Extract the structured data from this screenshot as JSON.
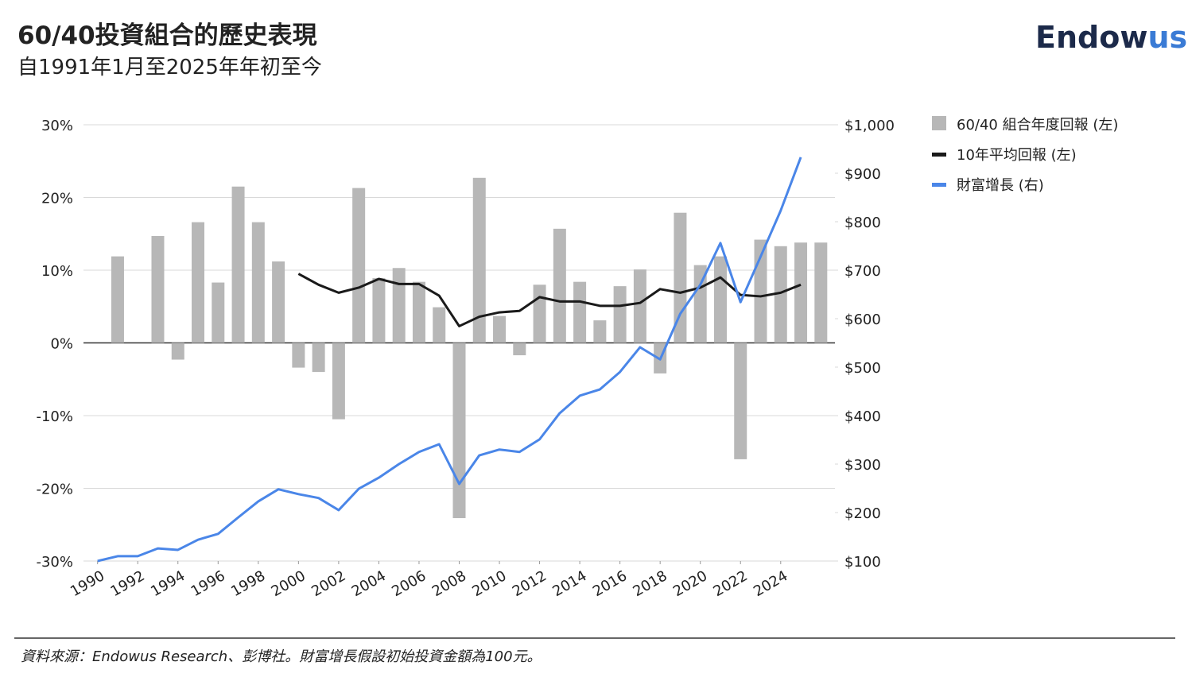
{
  "chart_data": {
    "type": "bar-line",
    "title": "60/40投資組合的歷史表現",
    "subtitle": "自1991年1月至2025年年初至今",
    "logo": [
      "Endow",
      "us"
    ],
    "source": "資料來源：Endowus Research、彭博社。財富增長假設初始投資金額為100元。",
    "xlim": [
      1989.3,
      2026.7
    ],
    "xticks": [
      1990,
      1992,
      1994,
      1996,
      1998,
      2000,
      2002,
      2004,
      2006,
      2008,
      2010,
      2012,
      2014,
      2016,
      2018,
      2020,
      2022,
      2024
    ],
    "ylim": [
      -30,
      30
    ],
    "yticks": [
      {
        "value": -30,
        "label": "-30%"
      },
      {
        "value": -20,
        "label": "-20%"
      },
      {
        "value": -10,
        "label": "-10%"
      },
      {
        "value": 0,
        "label": "0%"
      },
      {
        "value": 10,
        "label": "10%"
      },
      {
        "value": 20,
        "label": "20%"
      },
      {
        "value": 30,
        "label": "30%"
      }
    ],
    "y2lim": [
      100,
      1000
    ],
    "y2ticks": [
      {
        "value": 100,
        "label": "$100"
      },
      {
        "value": 200,
        "label": "$200"
      },
      {
        "value": 300,
        "label": "$300"
      },
      {
        "value": 400,
        "label": "$400"
      },
      {
        "value": 500,
        "label": "$500"
      },
      {
        "value": 600,
        "label": "$600"
      },
      {
        "value": 700,
        "label": "$700"
      },
      {
        "value": 800,
        "label": "$800"
      },
      {
        "value": 900,
        "label": "$900"
      },
      {
        "value": {
          "v": 1000
        },
        "label": "$1,000"
      }
    ],
    "grid": true,
    "series": [
      {
        "name": "60/40 組合年度回報 (左)",
        "type": "bar",
        "color": "#b7b7b7",
        "x": [
          1991,
          1992,
          1993,
          1994,
          1995,
          1996,
          1997,
          1998,
          1999,
          2000,
          2001,
          2002,
          2003,
          2004,
          2005,
          2006,
          2007,
          2008,
          2009,
          2010,
          2011,
          2012,
          2013,
          2014,
          2015,
          2016,
          2017,
          2018,
          2019,
          2020,
          2021,
          2022,
          2023,
          2024,
          2025,
          2026
        ],
        "values": [
          11.9,
          0,
          14.7,
          -2.3,
          16.6,
          8.3,
          21.5,
          16.6,
          11.2,
          -3.4,
          -4.0,
          -10.5,
          21.3,
          8.9,
          10.3,
          8.4,
          4.9,
          -24.1,
          22.7,
          3.7,
          -1.7,
          8.0,
          15.7,
          8.4,
          3.1,
          7.8,
          10.1,
          -4.2,
          17.9,
          10.7,
          11.9,
          -16.0,
          14.2,
          13.3,
          13.8,
          13.8
        ]
      },
      {
        "name": "10年平均回報 (左)",
        "type": "line",
        "color": "#1a1a1a",
        "x": [
          2000,
          2001,
          2002,
          2003,
          2004,
          2005,
          2006,
          2007,
          2008,
          2009,
          2010,
          2011,
          2012,
          2013,
          2014,
          2015,
          2016,
          2017,
          2018,
          2019,
          2020,
          2021,
          2022,
          2023,
          2024,
          2025
        ],
        "values": [
          9.5,
          8.0,
          6.9,
          7.6,
          8.8,
          8.1,
          8.1,
          6.5,
          2.3,
          3.6,
          4.2,
          4.4,
          6.3,
          5.7,
          5.7,
          5.1,
          5.1,
          5.5,
          7.4,
          6.9,
          7.6,
          9.0,
          6.6,
          6.4,
          6.9,
          8.0
        ]
      },
      {
        "name": "財富增長 (右)",
        "type": "line",
        "axis": "y2",
        "color": "#4a86e8",
        "x": [
          1990,
          1991,
          1992,
          1993,
          1994,
          1995,
          1996,
          1997,
          1998,
          1999,
          2000,
          2001,
          2002,
          2003,
          2004,
          2005,
          2006,
          2007,
          2008,
          2009,
          2010,
          2011,
          2012,
          2013,
          2014,
          2015,
          2016,
          2017,
          2018,
          2019,
          2020,
          2021,
          2022,
          2023,
          2024,
          2025
        ],
        "values": [
          100,
          110,
          110,
          126,
          123,
          144,
          156,
          190,
          223,
          248,
          238,
          230,
          205,
          249,
          272,
          300,
          325,
          341,
          259,
          318,
          330,
          325,
          351,
          405,
          441,
          454,
          490,
          541,
          516,
          610,
          670,
          756,
          634,
          728,
          823,
          933
        ]
      }
    ]
  }
}
